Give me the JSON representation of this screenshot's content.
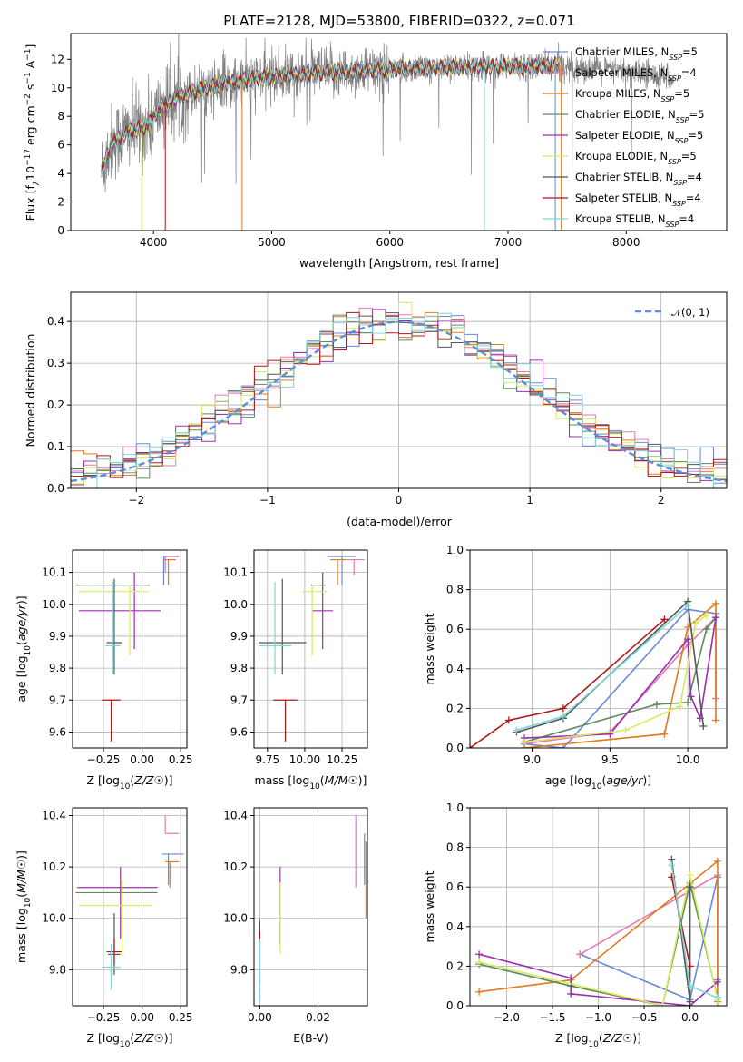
{
  "figure_title": "PLATE=2128, MJD=53800, FIBERID=0322, z=0.071",
  "series": [
    {
      "name": "Chabrier MILES, N_SSP=5",
      "label": "Chabrier MILES, N",
      "sub": "SSP",
      "suffix": "=5",
      "color": "#6a8ad4"
    },
    {
      "name": "Salpeter MILES, N_SSP=4",
      "label": "Salpeter MILES, N",
      "sub": "SSP",
      "suffix": "=4",
      "color": "#e57ab0"
    },
    {
      "name": "Kroupa MILES, N_SSP=5",
      "label": "Kroupa MILES, N",
      "sub": "SSP",
      "suffix": "=5",
      "color": "#e07b20"
    },
    {
      "name": "Chabrier ELODIE, N_SSP=5",
      "label": "Chabrier ELODIE, N",
      "sub": "SSP",
      "suffix": "=5",
      "color": "#5d8a5d"
    },
    {
      "name": "Salpeter ELODIE, N_SSP=5",
      "label": "Salpeter ELODIE, N",
      "sub": "SSP",
      "suffix": "=5",
      "color": "#9b2fb0"
    },
    {
      "name": "Kroupa ELODIE, N_SSP=5",
      "label": "Kroupa ELODIE, N",
      "sub": "SSP",
      "suffix": "=5",
      "color": "#d8ea60"
    },
    {
      "name": "Chabrier STELIB, N_SSP=4",
      "label": "Chabrier STELIB, N",
      "sub": "SSP",
      "suffix": "=4",
      "color": "#555555"
    },
    {
      "name": "Salpeter STELIB, N_SSP=4",
      "label": "Salpeter STELIB, N",
      "sub": "SSP",
      "suffix": "=4",
      "color": "#b01818"
    },
    {
      "name": "Kroupa STELIB, N_SSP=4",
      "label": "Kroupa STELIB, N",
      "sub": "SSP",
      "suffix": "=4",
      "color": "#7fd6d6"
    }
  ],
  "chart_data": [
    {
      "id": "spectrum",
      "type": "line",
      "xlabel": "wavelength [Angstrom, rest frame]",
      "ylabel": "Flux [f_λ 10^-17 erg cm^-2 s^-1 A^-1]",
      "ylabel_parts": {
        "a": "Flux [f",
        "b": "λ",
        "c": "10",
        "d": "−17",
        "e": " erg cm",
        "f": "−2",
        "g": " s",
        "h": "−1",
        "i": " A",
        "j": "−1",
        "k": "]"
      },
      "xlim": [
        3300,
        8850
      ],
      "ylim": [
        0,
        13.8
      ],
      "xticks": [
        4000,
        5000,
        6000,
        7000,
        8000
      ],
      "yticks": [
        0,
        2,
        4,
        6,
        8,
        10,
        12
      ],
      "data_color": "#808080",
      "continuum": {
        "x": [
          3560,
          3650,
          3800,
          3950,
          4050,
          4200,
          4400,
          4600,
          4800,
          5000,
          5300,
          5600,
          6000,
          6400,
          6800,
          7000,
          7200,
          7400
        ],
        "y": [
          4.2,
          6.2,
          7.0,
          7.3,
          8.6,
          9.3,
          9.9,
          10.3,
          10.6,
          10.8,
          11.0,
          11.1,
          11.3,
          11.4,
          11.5,
          11.5,
          11.5,
          11.6
        ]
      },
      "data_extent": [
        3560,
        8400
      ],
      "legend": "upper right"
    },
    {
      "id": "residuals",
      "type": "histogram",
      "xlabel": "(data-model)/error",
      "ylabel": "Normed distribution",
      "xlim": [
        -2.5,
        2.5
      ],
      "ylim": [
        0,
        0.47
      ],
      "xticks": [
        -2,
        -1,
        0,
        1,
        2
      ],
      "yticks": [
        0.0,
        0.1,
        0.2,
        0.3,
        0.4
      ],
      "reference": {
        "name": "N(0,1)",
        "label": "𝒩(0, 1)",
        "color": "#5b8fd8",
        "mean": 0,
        "sigma": 1
      },
      "bin_width": 0.1,
      "legend": "upper right"
    },
    {
      "id": "age_vs_Z",
      "type": "errorbar",
      "xlabel": "Z [log10(Z/Z☉)]",
      "ylabel": "age [log10(age/yr)]",
      "xlim": [
        -0.45,
        0.29
      ],
      "ylim": [
        9.55,
        10.17
      ],
      "xticks": [
        -0.25,
        0.0,
        0.25
      ],
      "yticks": [
        9.6,
        9.7,
        9.8,
        9.9,
        10.0,
        10.1
      ],
      "points": [
        {
          "s": 0,
          "x": 0.14,
          "y": 10.15,
          "xerr": [
            0.0,
            0.1
          ],
          "yerr": [
            0.09,
            0.0
          ]
        },
        {
          "s": 1,
          "x": 0.15,
          "y": 10.15,
          "xerr": [
            0.0,
            0.09
          ],
          "yerr": [
            0.05,
            0.0
          ]
        },
        {
          "s": 2,
          "x": 0.17,
          "y": 10.14,
          "xerr": [
            0.03,
            0.05
          ],
          "yerr": [
            0.08,
            0.0
          ]
        },
        {
          "s": 3,
          "x": -0.11,
          "y": 10.06,
          "xerr": [
            0.32,
            0.16
          ],
          "yerr": [
            0.0,
            0.0
          ]
        },
        {
          "s": 4,
          "x": -0.05,
          "y": 9.98,
          "xerr": [
            0.36,
            0.17
          ],
          "yerr": [
            0.12,
            0.12
          ]
        },
        {
          "s": 5,
          "x": -0.08,
          "y": 10.04,
          "xerr": [
            0.33,
            0.12
          ],
          "yerr": [
            0.2,
            0.02
          ]
        },
        {
          "s": 6,
          "x": -0.18,
          "y": 9.88,
          "xerr": [
            0.05,
            0.05
          ],
          "yerr": [
            0.1,
            0.2
          ]
        },
        {
          "s": 7,
          "x": -0.2,
          "y": 9.7,
          "xerr": [
            0.06,
            0.06
          ],
          "yerr": [
            0.13,
            0.0
          ]
        },
        {
          "s": 8,
          "x": -0.19,
          "y": 9.87,
          "xerr": [
            0.05,
            0.05
          ],
          "yerr": [
            0.09,
            0.2
          ]
        }
      ]
    },
    {
      "id": "age_vs_mass",
      "type": "errorbar",
      "xlabel": "mass [log10(M/M☉)]",
      "ylabel": "",
      "xlim": [
        9.66,
        10.42
      ],
      "ylim": [
        9.55,
        10.17
      ],
      "xticks": [
        9.75,
        10.0,
        10.25
      ],
      "yticks": [
        9.6,
        9.7,
        9.8,
        9.9,
        10.0,
        10.1
      ],
      "points": [
        {
          "s": 0,
          "x": 10.25,
          "y": 10.15,
          "xerr": [
            0.1,
            0.09
          ],
          "yerr": [
            0.09,
            0.0
          ]
        },
        {
          "s": 1,
          "x": 10.33,
          "y": 10.14,
          "xerr": [
            0.07,
            0.07
          ],
          "yerr": [
            0.05,
            0.0
          ]
        },
        {
          "s": 2,
          "x": 10.22,
          "y": 10.14,
          "xerr": [
            0.05,
            0.05
          ],
          "yerr": [
            0.08,
            0.0
          ]
        },
        {
          "s": 3,
          "x": 10.09,
          "y": 10.06,
          "xerr": [
            0.05,
            0.05
          ],
          "yerr": [
            0.0,
            0.0
          ]
        },
        {
          "s": 4,
          "x": 10.12,
          "y": 9.98,
          "xerr": [
            0.07,
            0.07
          ],
          "yerr": [
            0.12,
            0.12
          ]
        },
        {
          "s": 5,
          "x": 10.05,
          "y": 10.04,
          "xerr": [
            0.07,
            0.1
          ],
          "yerr": [
            0.2,
            0.02
          ]
        },
        {
          "s": 6,
          "x": 9.85,
          "y": 9.88,
          "xerr": [
            0.16,
            0.16
          ],
          "yerr": [
            0.1,
            0.2
          ]
        },
        {
          "s": 7,
          "x": 9.87,
          "y": 9.7,
          "xerr": [
            0.08,
            0.08
          ],
          "yerr": [
            0.13,
            0.0
          ]
        },
        {
          "s": 8,
          "x": 9.8,
          "y": 9.87,
          "xerr": [
            0.11,
            0.11
          ],
          "yerr": [
            0.09,
            0.2
          ]
        }
      ]
    },
    {
      "id": "weight_vs_age",
      "type": "line",
      "xlabel": "age [log10(age/yr)]",
      "ylabel": "mass weight",
      "xlim": [
        8.6,
        10.25
      ],
      "ylim": [
        0,
        1.0
      ],
      "xticks": [
        9.0,
        9.5,
        10.0
      ],
      "yticks": [
        0.0,
        0.2,
        0.4,
        0.6,
        0.8,
        1.0
      ],
      "series_points": [
        {
          "s": 0,
          "x": [
            8.95,
            9.2,
            10.0,
            10.18,
            10.18
          ],
          "y": [
            0.02,
            0.0,
            0.7,
            0.68,
            0.25
          ]
        },
        {
          "s": 1,
          "x": [
            8.95,
            9.5,
            10.0,
            10.18,
            10.18
          ],
          "y": [
            0.02,
            0.08,
            0.52,
            0.66,
            0.25
          ]
        },
        {
          "s": 2,
          "x": [
            8.95,
            9.85,
            10.0,
            10.18,
            10.18
          ],
          "y": [
            0.0,
            0.07,
            0.61,
            0.73,
            0.14
          ]
        },
        {
          "s": 3,
          "x": [
            8.95,
            9.8,
            10.0,
            10.12,
            10.18
          ],
          "y": [
            0.03,
            0.22,
            0.23,
            0.6,
            0.66
          ]
        },
        {
          "s": 4,
          "x": [
            8.95,
            9.5,
            10.0,
            10.02,
            10.08,
            10.18
          ],
          "y": [
            0.05,
            0.07,
            0.55,
            0.26,
            0.15,
            0.66
          ]
        },
        {
          "s": 5,
          "x": [
            8.95,
            9.6,
            9.95,
            10.05,
            10.12
          ],
          "y": [
            0.03,
            0.09,
            0.21,
            0.63,
            0.67
          ]
        },
        {
          "s": 6,
          "x": [
            8.9,
            9.2,
            10.0,
            10.1
          ],
          "y": [
            0.08,
            0.15,
            0.74,
            0.11
          ]
        },
        {
          "s": 7,
          "x": [
            8.6,
            8.85,
            9.2,
            9.85
          ],
          "y": [
            0.0,
            0.14,
            0.2,
            0.65
          ]
        },
        {
          "s": 8,
          "x": [
            8.9,
            9.2,
            10.0
          ],
          "y": [
            0.09,
            0.16,
            0.72
          ]
        }
      ]
    },
    {
      "id": "mass_vs_Z",
      "type": "errorbar",
      "xlabel": "Z [log10(Z/Z☉)]",
      "ylabel": "mass [log10(M/M☉)]",
      "xlim": [
        -0.45,
        0.29
      ],
      "ylim": [
        9.66,
        10.43
      ],
      "xticks": [
        -0.25,
        0.0,
        0.25
      ],
      "yticks": [
        9.8,
        10.0,
        10.2,
        10.4
      ],
      "points": [
        {
          "s": 0,
          "x": 0.17,
          "y": 10.25,
          "xerr": [
            0.04,
            0.1
          ],
          "yerr": [
            0.12,
            0.0
          ]
        },
        {
          "s": 1,
          "x": 0.15,
          "y": 10.33,
          "xerr": [
            0.0,
            0.09
          ],
          "yerr": [
            0.0,
            0.07
          ]
        },
        {
          "s": 2,
          "x": 0.18,
          "y": 10.22,
          "xerr": [
            0.03,
            0.06
          ],
          "yerr": [
            0.1,
            0.0
          ]
        },
        {
          "s": 3,
          "x": -0.15,
          "y": 10.1,
          "xerr": [
            0.28,
            0.25
          ],
          "yerr": [
            0.0,
            0.0
          ]
        },
        {
          "s": 4,
          "x": -0.14,
          "y": 10.12,
          "xerr": [
            0.28,
            0.24
          ],
          "yerr": [
            0.2,
            0.08
          ]
        },
        {
          "s": 5,
          "x": -0.13,
          "y": 10.05,
          "xerr": [
            0.28,
            0.2
          ],
          "yerr": [
            0.2,
            0.1
          ]
        },
        {
          "s": 6,
          "x": -0.18,
          "y": 9.86,
          "xerr": [
            0.04,
            0.04
          ],
          "yerr": [
            0.08,
            0.16
          ]
        },
        {
          "s": 7,
          "x": -0.18,
          "y": 9.87,
          "xerr": [
            0.05,
            0.05
          ],
          "yerr": [
            0.05,
            0.05
          ]
        },
        {
          "s": 8,
          "x": -0.2,
          "y": 9.81,
          "xerr": [
            0.06,
            0.06
          ],
          "yerr": [
            0.09,
            0.09
          ]
        }
      ]
    },
    {
      "id": "mass_vs_EBV",
      "type": "errorbar",
      "xlabel": "E(B-V)",
      "ylabel": "",
      "xlim": [
        -0.002,
        0.037
      ],
      "ylim": [
        9.66,
        10.43
      ],
      "xticks": [
        0.0,
        0.02
      ],
      "yticks": [
        9.8,
        10.0,
        10.2,
        10.4
      ],
      "points": [
        {
          "s": 0,
          "x": 0.036,
          "y": 10.25,
          "xerr": [
            0,
            0
          ],
          "yerr": [
            0.12,
            0.08
          ]
        },
        {
          "s": 1,
          "x": 0.033,
          "y": 10.28,
          "xerr": [
            0,
            0
          ],
          "yerr": [
            0.16,
            0.12
          ]
        },
        {
          "s": 2,
          "x": 0.0365,
          "y": 10.15,
          "xerr": [
            0,
            0
          ],
          "yerr": [
            0.15,
            0.15
          ]
        },
        {
          "s": 3,
          "x": 0.0,
          "y": 9.9,
          "xerr": [
            0,
            0
          ],
          "yerr": [
            0.1,
            0.1
          ]
        },
        {
          "s": 4,
          "x": 0.007,
          "y": 10.05,
          "xerr": [
            0,
            0
          ],
          "yerr": [
            0.15,
            0.15
          ]
        },
        {
          "s": 5,
          "x": 0.007,
          "y": 9.98,
          "xerr": [
            0,
            0
          ],
          "yerr": [
            0.12,
            0.16
          ]
        },
        {
          "s": 6,
          "x": 0.0,
          "y": 9.85,
          "xerr": [
            0,
            0
          ],
          "yerr": [
            0.14,
            0.14
          ]
        },
        {
          "s": 7,
          "x": 0.0,
          "y": 9.85,
          "xerr": [
            0,
            0
          ],
          "yerr": [
            0.1,
            0.1
          ]
        },
        {
          "s": 8,
          "x": 0.0,
          "y": 9.8,
          "xerr": [
            0,
            0
          ],
          "yerr": [
            0.12,
            0.12
          ]
        }
      ]
    },
    {
      "id": "weight_vs_Z",
      "type": "line",
      "xlabel": "Z [log10(Z/Z☉)]",
      "ylabel": "mass weight",
      "xlim": [
        -2.4,
        0.4
      ],
      "ylim": [
        0,
        1.0
      ],
      "xticks": [
        -2.0,
        -1.5,
        -1.0,
        -0.5,
        0.0
      ],
      "yticks": [
        0.0,
        0.2,
        0.4,
        0.6,
        0.8,
        1.0
      ],
      "series_points": [
        {
          "s": 0,
          "x": [
            -1.2,
            0.0,
            0.3,
            0.3
          ],
          "y": [
            0.26,
            0.03,
            0.65,
            0.13
          ]
        },
        {
          "s": 1,
          "x": [
            -1.2,
            0.3
          ],
          "y": [
            0.26,
            0.66
          ]
        },
        {
          "s": 2,
          "x": [
            -2.3,
            -1.3,
            0.3,
            0.3
          ],
          "y": [
            0.07,
            0.13,
            0.73,
            0.02
          ]
        },
        {
          "s": 3,
          "x": [
            -2.3,
            -1.3,
            -0.3,
            0.0,
            0.3
          ],
          "y": [
            0.21,
            0.1,
            0.0,
            0.62,
            0.04
          ]
        },
        {
          "s": 4,
          "x": [
            -2.3,
            -1.3,
            -1.3,
            0.0,
            0.3
          ],
          "y": [
            0.26,
            0.14,
            0.06,
            0.0,
            0.12
          ]
        },
        {
          "s": 5,
          "x": [
            -2.3,
            -0.3,
            0.0,
            0.3
          ],
          "y": [
            0.22,
            0.0,
            0.66,
            0.03
          ]
        },
        {
          "s": 6,
          "x": [
            -0.2,
            0.0,
            0.0
          ],
          "y": [
            0.74,
            0.02,
            0.6
          ]
        },
        {
          "s": 7,
          "x": [
            -0.2,
            0.0
          ],
          "y": [
            0.65,
            0.2
          ]
        },
        {
          "s": 8,
          "x": [
            -0.2,
            0.0,
            0.3
          ],
          "y": [
            0.71,
            0.1,
            0.04
          ]
        }
      ]
    }
  ]
}
